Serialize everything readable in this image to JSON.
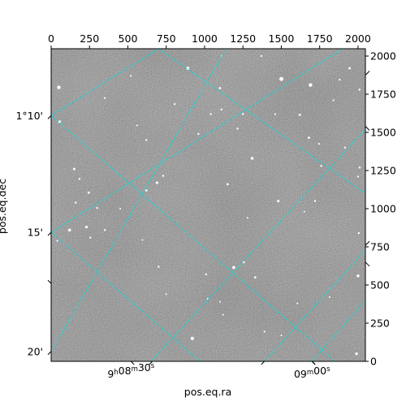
{
  "chart_data": {
    "type": "image",
    "pixel_axes": {
      "x_range": [
        0,
        2048
      ],
      "y_range": [
        0,
        2048
      ],
      "x_ticks": [
        0,
        250,
        500,
        750,
        1000,
        1250,
        1500,
        1750,
        2000
      ],
      "y_ticks": [
        0,
        250,
        500,
        750,
        1000,
        1250,
        1500,
        1750,
        2000
      ]
    },
    "world_axes": {
      "xlabel": "pos.eq.ra",
      "ylabel": "pos.eq.dec",
      "ra_ticks": [
        {
          "h": "9",
          "m": "08",
          "s": "30",
          "x": 520
        },
        {
          "h": "",
          "m": "09",
          "s": "00",
          "x": 1700
        }
      ],
      "dec_ticks": [
        {
          "label": "1°10'",
          "y": 1610
        },
        {
          "label": "15'",
          "y": 845
        },
        {
          "label": "20'",
          "y": 65
        }
      ]
    },
    "grid": {
      "color": "#00e0e0",
      "lines": [
        [
          [
            0,
            1610
          ],
          [
            700,
            2048
          ]
        ],
        [
          [
            0,
            1610
          ],
          [
            1850,
            0
          ]
        ],
        [
          [
            0,
            845
          ],
          [
            1900,
            2048
          ]
        ],
        [
          [
            0,
            845
          ],
          [
            970,
            0
          ]
        ],
        [
          [
            0,
            65
          ],
          [
            1140,
            2048
          ]
        ],
        [
          [
            650,
            0
          ],
          [
            2048,
            1520
          ]
        ],
        [
          [
            1390,
            0
          ],
          [
            2048,
            728
          ]
        ],
        [
          [
            1700,
            0
          ],
          [
            2048,
            400
          ]
        ],
        [
          [
            700,
            2048
          ],
          [
            2048,
            1100
          ]
        ]
      ]
    },
    "stars": [
      [
        50,
        1795,
        2.2
      ],
      [
        55,
        1570,
        1.6
      ],
      [
        150,
        1260,
        1.5
      ],
      [
        185,
        1195,
        1.2
      ],
      [
        245,
        1105,
        1.4
      ],
      [
        300,
        1005,
        1.2
      ],
      [
        230,
        880,
        1.6
      ],
      [
        255,
        810,
        1.2
      ],
      [
        350,
        860,
        1.2
      ],
      [
        450,
        1000,
        1.0
      ],
      [
        520,
        1870,
        1.1
      ],
      [
        620,
        1450,
        1.2
      ],
      [
        620,
        1120,
        1.3
      ],
      [
        690,
        1170,
        1.6
      ],
      [
        730,
        1215,
        1.2
      ],
      [
        805,
        1685,
        1.2
      ],
      [
        890,
        1920,
        1.9
      ],
      [
        960,
        1490,
        1.2
      ],
      [
        1040,
        1620,
        1.2
      ],
      [
        1100,
        1790,
        1.4
      ],
      [
        1110,
        1650,
        1.2
      ],
      [
        1150,
        1160,
        1.4
      ],
      [
        1215,
        1525,
        1.2
      ],
      [
        1250,
        1620,
        1.2
      ],
      [
        1310,
        1330,
        1.7
      ],
      [
        1280,
        940,
        1.0
      ],
      [
        1500,
        1850,
        2.5
      ],
      [
        1620,
        1615,
        1.4
      ],
      [
        1680,
        1465,
        1.4
      ],
      [
        1690,
        1810,
        2.2
      ],
      [
        1745,
        1425,
        1.1
      ],
      [
        1760,
        1280,
        1.2
      ],
      [
        1880,
        1845,
        1.2
      ],
      [
        2010,
        1780,
        1.2
      ],
      [
        1915,
        1400,
        1.2
      ],
      [
        2010,
        1270,
        1.2
      ],
      [
        1010,
        570,
        1.2
      ],
      [
        1190,
        615,
        1.9
      ],
      [
        1255,
        650,
        1.4
      ],
      [
        1330,
        550,
        1.3
      ],
      [
        1480,
        1050,
        1.5
      ],
      [
        1650,
        980,
        1.0
      ],
      [
        700,
        620,
        1.2
      ],
      [
        595,
        795,
        1.0
      ],
      [
        750,
        440,
        1.0
      ],
      [
        1020,
        410,
        1.0
      ],
      [
        1100,
        390,
        1.0
      ],
      [
        1605,
        380,
        1.0
      ],
      [
        1815,
        420,
        1.0
      ],
      [
        1390,
        195,
        1.1
      ],
      [
        1500,
        170,
        1.0
      ],
      [
        2000,
        560,
        1.7
      ],
      [
        2005,
        840,
        1.2
      ],
      [
        1990,
        50,
        1.6
      ],
      [
        920,
        150,
        2.0
      ],
      [
        40,
        790,
        1.1
      ],
      [
        120,
        860,
        1.8
      ],
      [
        160,
        1040,
        1.2
      ],
      [
        1840,
        1710,
        1.1
      ],
      [
        1370,
        2000,
        1.1
      ],
      [
        1110,
        2000,
        1.0
      ],
      [
        350,
        1725,
        1.1
      ],
      [
        560,
        1545,
        1.0
      ],
      [
        1945,
        1920,
        1.4
      ],
      [
        1720,
        1050,
        1.2
      ],
      [
        2000,
        1210,
        1.1
      ],
      [
        1460,
        1620,
        1.1
      ],
      [
        1120,
        305,
        1.0
      ]
    ]
  }
}
